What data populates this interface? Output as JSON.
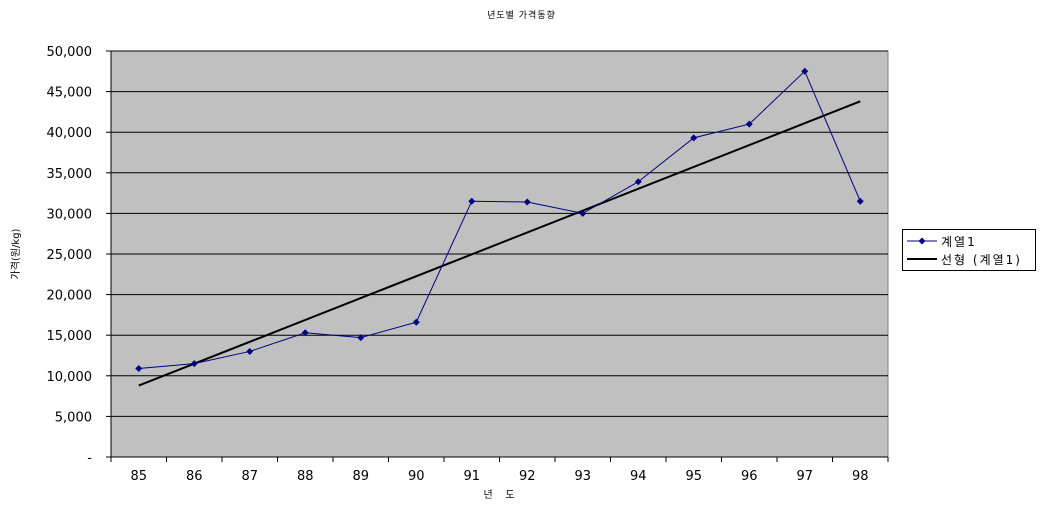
{
  "chart_data": {
    "type": "line",
    "title": "년도별 가격동향",
    "xlabel": "년    도",
    "ylabel": "가격(원/kg)",
    "categories": [
      "85",
      "86",
      "87",
      "88",
      "89",
      "90",
      "91",
      "92",
      "93",
      "94",
      "95",
      "96",
      "97",
      "98"
    ],
    "series": [
      {
        "name": "계열1",
        "color": "#000080",
        "marker": "diamond",
        "values": [
          10900,
          11500,
          13000,
          15300,
          14700,
          16600,
          31500,
          31400,
          30000,
          33900,
          39300,
          41000,
          47500,
          31500
        ]
      }
    ],
    "trendline": {
      "name": "선형 (계열1)",
      "color": "#000000",
      "start": 8800,
      "end": 43800
    },
    "yticks": [
      "-",
      "5,000",
      "10,000",
      "15,000",
      "20,000",
      "25,000",
      "30,000",
      "35,000",
      "40,000",
      "45,000",
      "50,000"
    ],
    "ylim": [
      0,
      50000
    ],
    "grid": true,
    "plot_background": "#c0c0c0",
    "legend_position": "right"
  }
}
